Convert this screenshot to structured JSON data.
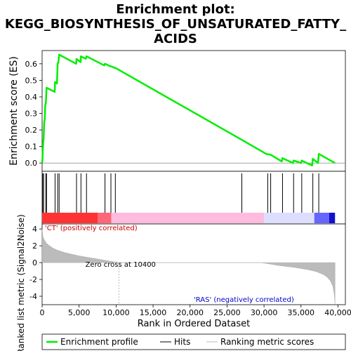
{
  "chart_data": {
    "type": "line",
    "title_lines": [
      "Enrichment plot:",
      "KEGG_BIOSYNTHESIS_OF_UNSATURATED_FATTY_",
      "ACIDS"
    ],
    "xlabel": "Rank in Ordered Dataset",
    "xlim": [
      0,
      41000
    ],
    "x_ticks": [
      0,
      5000,
      10000,
      15000,
      20000,
      25000,
      30000,
      35000,
      40000
    ],
    "x_tick_labels": [
      "0",
      "5,000",
      "10,000",
      "15,000",
      "20,000",
      "25,000",
      "30,000",
      "35,000",
      "40,000"
    ],
    "es_panel": {
      "ylabel": "Enrichment score (ES)",
      "ylim": [
        -0.05,
        0.68
      ],
      "y_ticks": [
        0.0,
        0.1,
        0.2,
        0.3,
        0.4,
        0.5,
        0.6
      ],
      "y_tick_labels": [
        "0.0",
        "0.1",
        "0.2",
        "0.3",
        "0.4",
        "0.5",
        "0.6"
      ],
      "series": [
        {
          "color": "#00ee00",
          "x": [
            0,
            50,
            80,
            150,
            200,
            280,
            350,
            420,
            500,
            600,
            1700,
            1750,
            2000,
            2050,
            2100,
            2200,
            2300,
            4600,
            4650,
            5200,
            5250,
            5900,
            6000,
            8400,
            8500,
            9200,
            9300,
            9800,
            9900,
            27000,
            30300,
            30900,
            32400,
            32500,
            33900,
            34000,
            35000,
            35100,
            36500,
            36600,
            37300,
            37400,
            39600
          ],
          "y": [
            0.0,
            0.02,
            0.06,
            0.13,
            0.14,
            0.25,
            0.26,
            0.35,
            0.36,
            0.455,
            0.43,
            0.49,
            0.48,
            0.54,
            0.6,
            0.61,
            0.655,
            0.6,
            0.63,
            0.61,
            0.645,
            0.63,
            0.645,
            0.59,
            0.6,
            0.585,
            0.585,
            0.575,
            0.575,
            0.14,
            0.055,
            0.05,
            0.01,
            0.03,
            0.0,
            0.015,
            0.0,
            0.015,
            -0.015,
            0.025,
            0.0,
            0.055,
            0.0
          ]
        }
      ]
    },
    "hits_panel": {
      "hit_positions": [
        80,
        200,
        500,
        600,
        1750,
        2100,
        2300,
        4650,
        5250,
        6000,
        8500,
        9300,
        9900,
        27000,
        30500,
        30900,
        32500,
        34000,
        35100,
        36600,
        37400
      ]
    },
    "heatmap_bar": {
      "zero_cross": 10400,
      "colors": [
        "#ff3333",
        "#ffbbdd",
        "#ddddff",
        "#3333ff"
      ]
    },
    "metric_panel": {
      "ylabel": "Ranked list metric (Signal2Noise)",
      "ylim": [
        -5.0,
        4.6
      ],
      "y_ticks": [
        -4,
        -2,
        0,
        2,
        4
      ],
      "y_tick_labels": [
        "-4",
        "-2",
        "0",
        "2",
        "4"
      ],
      "fill_color": "#bbbbbb",
      "profile": {
        "x": [
          0,
          100,
          300,
          600,
          1000,
          1500,
          2000,
          3000,
          4000,
          5000,
          6000,
          7000,
          8000,
          9000,
          10400,
          15000,
          20000,
          25000,
          29500,
          30000,
          32000,
          34000,
          35000,
          36000,
          37000,
          38000,
          38500,
          39000,
          39300,
          39500,
          39600
        ],
        "y": [
          4.0,
          3.1,
          2.7,
          2.3,
          2.0,
          1.7,
          1.5,
          1.2,
          1.0,
          0.8,
          0.65,
          0.5,
          0.35,
          0.2,
          0.0,
          0.0,
          0.0,
          0.0,
          0.0,
          -0.05,
          -0.35,
          -0.55,
          -0.7,
          -0.85,
          -1.05,
          -1.4,
          -1.7,
          -2.2,
          -2.8,
          -3.8,
          -4.9
        ]
      },
      "annotations": {
        "pos_label": "'CT' (positively correlated)",
        "zero_cross_label": "Zero cross at 10400",
        "neg_label": "'RAS' (negatively correlated)"
      }
    },
    "legend": {
      "placement": "bottom",
      "items": [
        {
          "label": "Enrichment profile",
          "color": "#00ee00",
          "kind": "line-thick"
        },
        {
          "label": "Hits",
          "color": "#000000",
          "kind": "line"
        },
        {
          "label": "Ranking metric scores",
          "color": "#bbbbbb",
          "kind": "line"
        }
      ]
    }
  }
}
